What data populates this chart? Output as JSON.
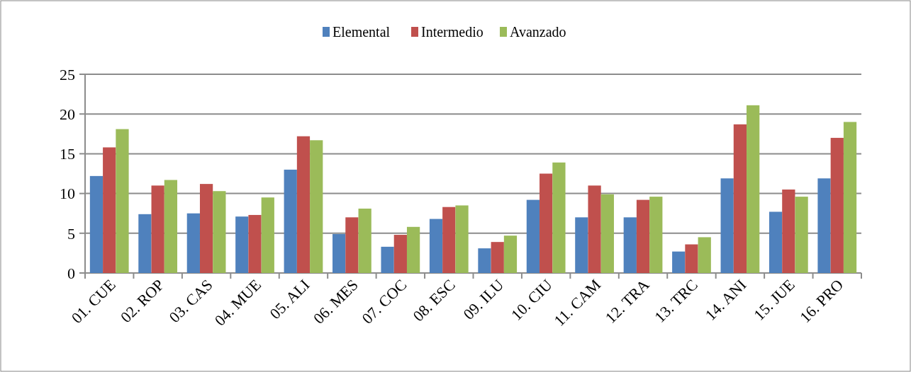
{
  "chart_data": {
    "type": "bar",
    "categories": [
      "01.  CUE",
      "02.  ROP",
      "03.  CAS",
      "04.  MUE",
      "05.  ALI",
      "06.  MES",
      "07.  COC",
      "08.  ESC",
      "09.  ILU",
      "10.  CIU",
      "11.  CAM",
      "12.  TRA",
      "13.  TRC",
      "14.  ANI",
      "15.  JUE",
      "16.  PRO"
    ],
    "series": [
      {
        "name": "Elemental",
        "color": "#4f81bd",
        "values": [
          12.2,
          7.4,
          7.5,
          7.1,
          13.0,
          4.9,
          3.3,
          6.8,
          3.1,
          9.2,
          7.0,
          7.0,
          2.7,
          11.9,
          7.7,
          11.9
        ]
      },
      {
        "name": "Intermedio",
        "color": "#c0504d",
        "values": [
          15.8,
          11.0,
          11.2,
          7.3,
          17.2,
          7.0,
          4.8,
          8.3,
          3.9,
          12.5,
          11.0,
          9.2,
          3.6,
          18.7,
          10.5,
          17.0
        ]
      },
      {
        "name": "Avanzado",
        "color": "#9bbb59",
        "values": [
          18.1,
          11.7,
          10.3,
          9.5,
          16.7,
          8.1,
          5.8,
          8.5,
          4.7,
          13.9,
          9.9,
          9.6,
          4.5,
          21.1,
          9.6,
          19.0
        ]
      }
    ],
    "ylim": [
      0,
      25
    ],
    "yticks": [
      0,
      5,
      10,
      15,
      20,
      25
    ],
    "grid": "y",
    "legend": "top"
  }
}
